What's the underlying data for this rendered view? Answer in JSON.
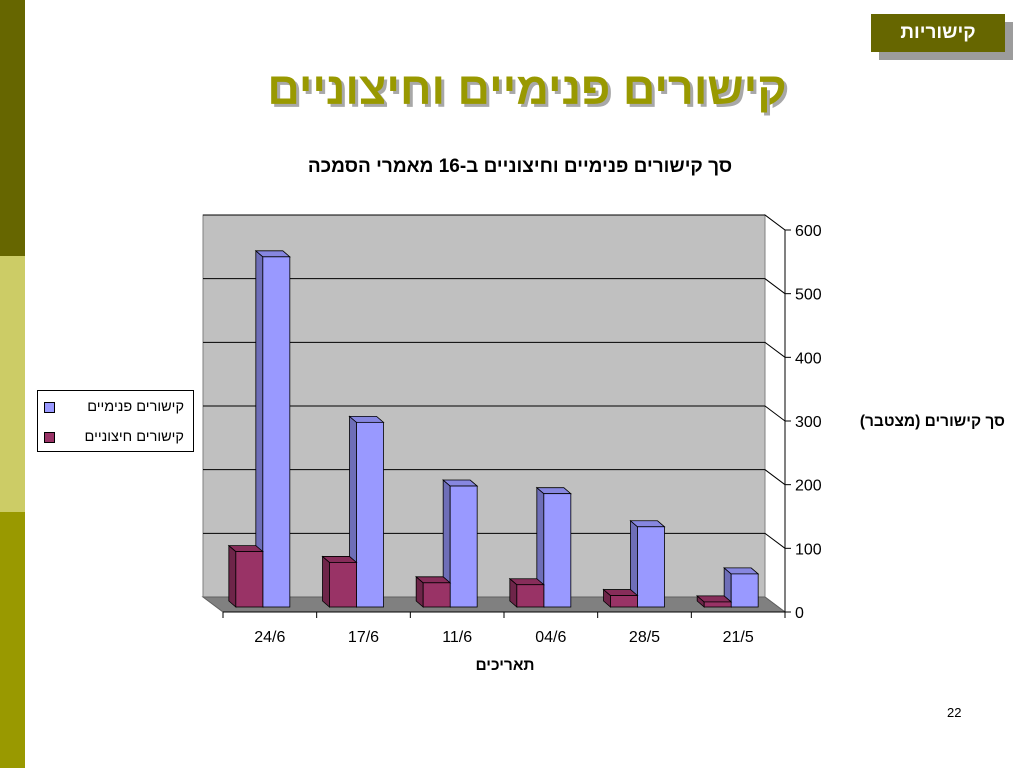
{
  "slide": {
    "badge": "קישוריות",
    "title": "קישורים פנימיים וחיצוניים",
    "page_number": "22",
    "colors": {
      "stripe_top": "#666600",
      "stripe_middle": "#CCCC66",
      "stripe_bottom": "#999900",
      "badge_background": "#666600",
      "badge_text": "#FFFFFF",
      "title": "#999900"
    }
  },
  "chart_data": {
    "type": "bar",
    "three_d": true,
    "title": "סך קישורים פנימיים וחיצוניים ב-16 מאמרי הסמכה",
    "xlabel": "תאריכים",
    "ylabel": "סך קישורים (מצטבר)",
    "categories": [
      "21/5",
      "28/5",
      "04/6",
      "11/6",
      "17/6",
      "24/6"
    ],
    "x_reversed": true,
    "y_axis_side": "right",
    "series": [
      {
        "name": "קישורים פנימיים",
        "color": "#9999FF",
        "values": [
          52,
          126,
          178,
          190,
          290,
          550
        ]
      },
      {
        "name": "קישורים חיצוניים",
        "color": "#993366",
        "values": [
          8,
          18,
          35,
          38,
          70,
          87
        ]
      }
    ],
    "ylim": [
      0,
      600
    ],
    "y_ticks": [
      0,
      100,
      200,
      300,
      400,
      500,
      600
    ],
    "grid": true,
    "legend_position": "left",
    "wall_color": "#C0C0C0",
    "floor_color": "#808080"
  }
}
